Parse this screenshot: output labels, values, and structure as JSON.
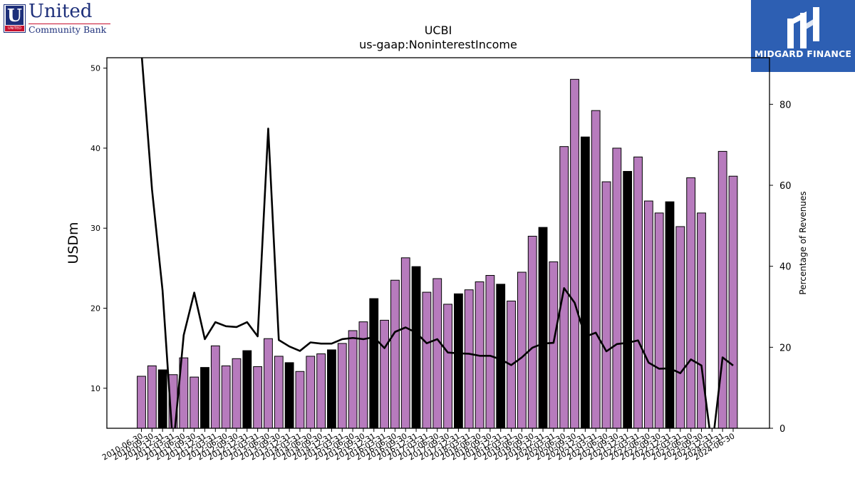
{
  "header": {
    "company_logo": {
      "name": "United",
      "sub": "Community Bank",
      "badge": "UNITED",
      "icon": "united-community-bank-logo"
    },
    "brand_logo": {
      "name": "MIDGARD FINANCE",
      "icon": "midgard-finance-logo"
    }
  },
  "chart_data": {
    "type": "bar",
    "title": "UCBI",
    "subtitle": "us-gaap:NoninterestIncome",
    "ylabel": "USDm",
    "y2label": "Percentage of Revenues",
    "ylim": [
      5,
      51.3
    ],
    "y2lim": [
      0,
      91.5
    ],
    "yticks": [
      10,
      20,
      30,
      40,
      50
    ],
    "y2ticks": [
      0,
      20,
      40,
      60,
      80
    ],
    "legend": "none",
    "grid": false,
    "colors": {
      "bar_default": "#b77bbd",
      "bar_q4": "#000000",
      "line": "#000000"
    },
    "categories": [
      "2010-06-30",
      "2010-09-30",
      "2010-12-31",
      "2011-03-31",
      "2011-06-30",
      "2011-09-30",
      "2011-12-31",
      "2012-03-31",
      "2012-06-30",
      "2012-09-30",
      "2012-12-31",
      "2013-03-31",
      "2013-06-30",
      "2013-09-30",
      "2013-12-31",
      "2014-03-31",
      "2014-06-30",
      "2014-09-30",
      "2014-12-31",
      "2015-03-31",
      "2015-06-30",
      "2015-09-30",
      "2015-12-31",
      "2016-03-31",
      "2016-06-30",
      "2016-09-30",
      "2016-12-31",
      "2017-03-31",
      "2017-06-30",
      "2017-09-30",
      "2017-12-31",
      "2018-03-31",
      "2018-06-30",
      "2018-09-30",
      "2018-12-31",
      "2019-03-31",
      "2019-06-30",
      "2019-09-30",
      "2019-12-31",
      "2020-03-31",
      "2020-06-30",
      "2020-09-30",
      "2020-12-31",
      "2021-03-31",
      "2021-06-30",
      "2021-09-30",
      "2021-12-31",
      "2022-03-31",
      "2022-06-30",
      "2022-09-30",
      "2022-12-31",
      "2023-03-31",
      "2023-06-30",
      "2023-09-30",
      "2023-12-31",
      "2024-03-31",
      "2024-06-30"
    ],
    "series": [
      {
        "type": "bar",
        "values": [
          11.5,
          12.8,
          12.3,
          11.7,
          13.8,
          11.4,
          12.6,
          15.3,
          12.8,
          13.7,
          14.7,
          12.7,
          16.2,
          14.0,
          13.2,
          12.1,
          14.0,
          14.3,
          14.8,
          15.6,
          17.2,
          18.3,
          21.2,
          18.5,
          23.5,
          26.3,
          25.2,
          22.0,
          23.7,
          20.5,
          21.8,
          22.3,
          23.3,
          24.1,
          23.0,
          20.9,
          24.5,
          29.0,
          30.1,
          25.8,
          40.2,
          48.6,
          41.4,
          44.7,
          35.8,
          40.0,
          37.1,
          38.9,
          33.4,
          31.9,
          33.3,
          30.2,
          36.3,
          31.9,
          null,
          39.6,
          36.5
        ],
        "q4_flags": [
          false,
          false,
          true,
          false,
          false,
          false,
          true,
          false,
          false,
          false,
          true,
          false,
          false,
          false,
          true,
          false,
          false,
          false,
          true,
          false,
          false,
          false,
          true,
          false,
          false,
          false,
          true,
          false,
          false,
          false,
          true,
          false,
          false,
          false,
          true,
          false,
          false,
          false,
          true,
          false,
          false,
          false,
          true,
          false,
          false,
          false,
          true,
          false,
          false,
          false,
          true,
          false,
          false,
          false,
          true,
          false,
          false
        ]
      },
      {
        "type": "line",
        "axis": "right",
        "values": [
          93,
          59,
          34,
          -5,
          23,
          33.5,
          22,
          26.2,
          25.2,
          25,
          26.2,
          22.7,
          74,
          21.8,
          20.2,
          19.1,
          21.2,
          20.9,
          20.9,
          22,
          22.3,
          22,
          22.5,
          19.8,
          23.8,
          24.9,
          23.6,
          21,
          22,
          18.7,
          18.5,
          18.4,
          17.9,
          17.9,
          17,
          15.6,
          17.5,
          19.9,
          20.9,
          21.1,
          34.6,
          31,
          22.6,
          23.6,
          19,
          20.8,
          21.1,
          21.7,
          16.2,
          14.7,
          14.8,
          13.6,
          17,
          15.5,
          -5,
          17.5,
          15.5
        ]
      }
    ]
  }
}
